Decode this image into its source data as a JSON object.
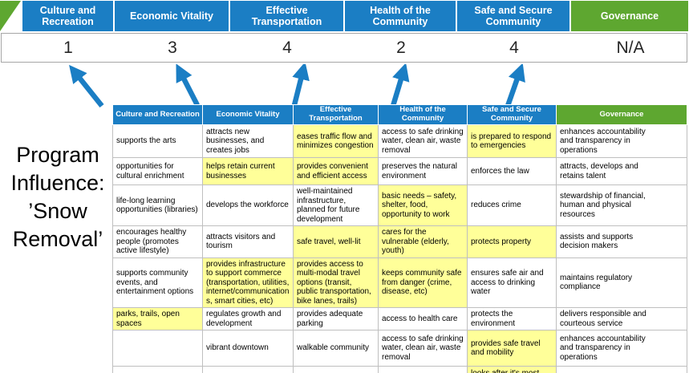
{
  "slide": {
    "title": "Program\nInfluence:\n’Snow\nRemoval’"
  },
  "colors": {
    "header_blue": "#1B7EC4",
    "header_green": "#5EA730",
    "highlight_yellow": "#FFFF99",
    "arrow_blue": "#1B7EC4"
  },
  "scoreboard": {
    "columns": [
      {
        "label": "Culture and Recreation",
        "score": "1"
      },
      {
        "label": "Economic Vitality",
        "score": "3"
      },
      {
        "label": "Effective Transportation",
        "score": "4"
      },
      {
        "label": "Health of the Community",
        "score": "2"
      },
      {
        "label": "Safe and Secure Community",
        "score": "4"
      },
      {
        "label": "Governance",
        "score": "N/A"
      }
    ]
  },
  "matrix": {
    "headers": [
      "Culture and Recreation",
      "Economic Vitality",
      "Effective Transportation",
      "Health of the Community",
      "Safe and Secure Community",
      "Governance"
    ],
    "rows": [
      [
        {
          "t": "supports the arts"
        },
        {
          "t": "attracts new businesses, and creates jobs"
        },
        {
          "t": "eases traffic flow and minimizes congestion",
          "h": true
        },
        {
          "t": "access to safe drinking water, clean air, waste removal"
        },
        {
          "t": "is prepared to respond to emergencies",
          "h": true
        },
        {
          "t": "enhances accountability and transparency in operations"
        }
      ],
      [
        {
          "t": "opportunities for cultural enrichment"
        },
        {
          "t": "helps retain current businesses",
          "h": true
        },
        {
          "t": "provides convenient and efficient access",
          "h": true
        },
        {
          "t": "preserves the natural environment"
        },
        {
          "t": "enforces the law"
        },
        {
          "t": "attracts, develops and retains talent"
        }
      ],
      [
        {
          "t": "life-long learning opportunities (libraries)"
        },
        {
          "t": "develops the workforce"
        },
        {
          "t": "well-maintained infrastructure, planned for future development"
        },
        {
          "t": "basic needs – safety, shelter, food, opportunity to work",
          "h": true
        },
        {
          "t": "reduces crime"
        },
        {
          "t": "stewardship of financial, human and physical resources"
        }
      ],
      [
        {
          "t": "encourages healthy people (promotes active lifestyle)"
        },
        {
          "t": "attracts visitors and tourism"
        },
        {
          "t": "safe travel, well-lit",
          "h": true
        },
        {
          "t": "cares for the vulnerable (elderly, youth)",
          "h": true
        },
        {
          "t": "protects property",
          "h": true
        },
        {
          "t": "assists and supports decision makers"
        }
      ],
      [
        {
          "t": "supports community events, and entertainment options"
        },
        {
          "t": "provides infrastructure to support commerce (transportation, utilities, internet/communications, smart cities, etc)",
          "h": true
        },
        {
          "t": "provides access to multi-modal travel options (transit, public transportation, bike lanes, trails)",
          "h": true
        },
        {
          "t": "keeps community safe from danger (crime, disease, etc)",
          "h": true
        },
        {
          "t": "ensures safe air and access to drinking water"
        },
        {
          "t": "maintains regulatory compliance"
        }
      ],
      [
        {
          "t": "parks, trails, open spaces",
          "h": true
        },
        {
          "t": "regulates growth and development"
        },
        {
          "t": "provides adequate parking"
        },
        {
          "t": "access to health care"
        },
        {
          "t": "protects the environment"
        },
        {
          "t": "delivers responsible and courteous service"
        }
      ],
      [
        {
          "t": ""
        },
        {
          "t": "vibrant downtown"
        },
        {
          "t": "walkable community"
        },
        {
          "t": "access to safe drinking water, clean air, waste removal"
        },
        {
          "t": "provides safe travel and mobility",
          "h": true
        },
        {
          "t": "enhances accountability and transparency in operations"
        }
      ],
      [
        {
          "t": ""
        },
        {
          "t": ""
        },
        {
          "t": ""
        },
        {
          "t": ""
        },
        {
          "t": "looks after it's most vulnerable",
          "h": true
        },
        {
          "t": ""
        }
      ]
    ]
  }
}
